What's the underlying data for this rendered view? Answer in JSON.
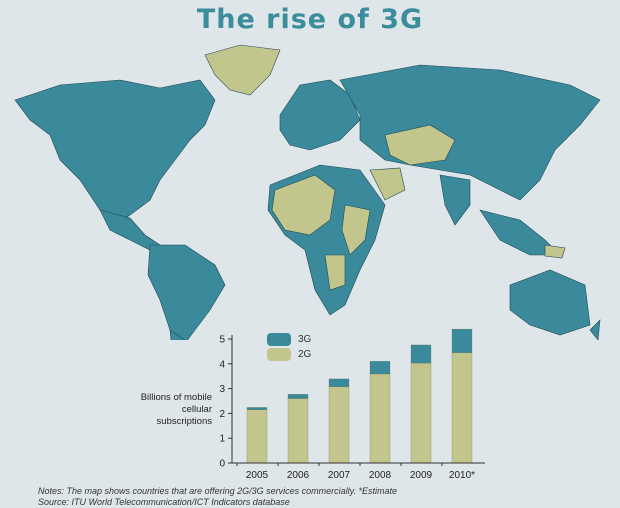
{
  "title": "The rise of 3G",
  "map": {
    "colors": {
      "3G": "#3a8a9c",
      "2G": "#c3c68c",
      "border": "#1f4a55"
    }
  },
  "chart_data": {
    "type": "bar",
    "stacked": true,
    "categories": [
      "2005",
      "2006",
      "2007",
      "2008",
      "2009",
      "2010*"
    ],
    "series": [
      {
        "name": "2G",
        "color": "#c3c68c",
        "values": [
          2.15,
          2.6,
          3.07,
          3.59,
          4.03,
          4.45
        ]
      },
      {
        "name": "3G",
        "color": "#3a8a9c",
        "values": [
          0.09,
          0.17,
          0.32,
          0.51,
          0.73,
          0.95
        ]
      }
    ],
    "ylabel": "Billions of mobile cellular subscriptions",
    "ylim": [
      0,
      5
    ],
    "yticks": [
      "0",
      "1",
      "2",
      "3",
      "4",
      "5"
    ],
    "legend": "top-left"
  },
  "notes": "Notes:  The map shows countries that are offering 2G/3G services commercially.  *Estimate",
  "source": "Source:  ITU World Telecommunication/ICT Indicators database"
}
